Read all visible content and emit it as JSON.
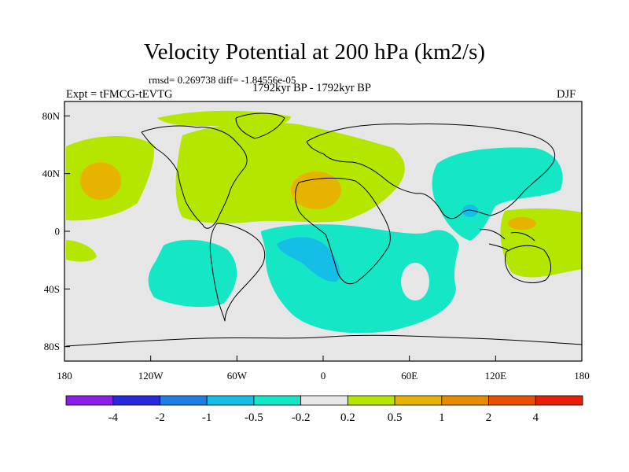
{
  "title": "Velocity Potential at 200 hPa (km2/s)",
  "stats": "rmsd= 0.269738  diff= -1.84556e-05",
  "expt": "Expt = tFMCG-tEVTG",
  "period": "1792kyr BP - 1792kyr BP",
  "season": "DJF",
  "lat_ticks": [
    "80N",
    "40N",
    "0",
    "40S",
    "80S"
  ],
  "lon_ticks": [
    "180",
    "120W",
    "60W",
    "0",
    "60E",
    "120E",
    "180"
  ],
  "colorbar": {
    "labels": [
      "-4",
      "-2",
      "-1",
      "-0.5",
      "-0.2",
      "0.2",
      "0.5",
      "1",
      "2",
      "4"
    ],
    "colors": [
      "#8a1ee6",
      "#2828d8",
      "#1e7ee6",
      "#14bee6",
      "#14e6c6",
      "#e6e6e6",
      "#b4e600",
      "#e6b400",
      "#e68a00",
      "#e65000",
      "#e61e0a"
    ]
  },
  "field_colors": {
    "neg_02": "#14e6c6",
    "neg_05": "#14bee6",
    "neutral": "#e6e6e6",
    "pos_02": "#b4e600",
    "pos_05": "#e6b400"
  }
}
